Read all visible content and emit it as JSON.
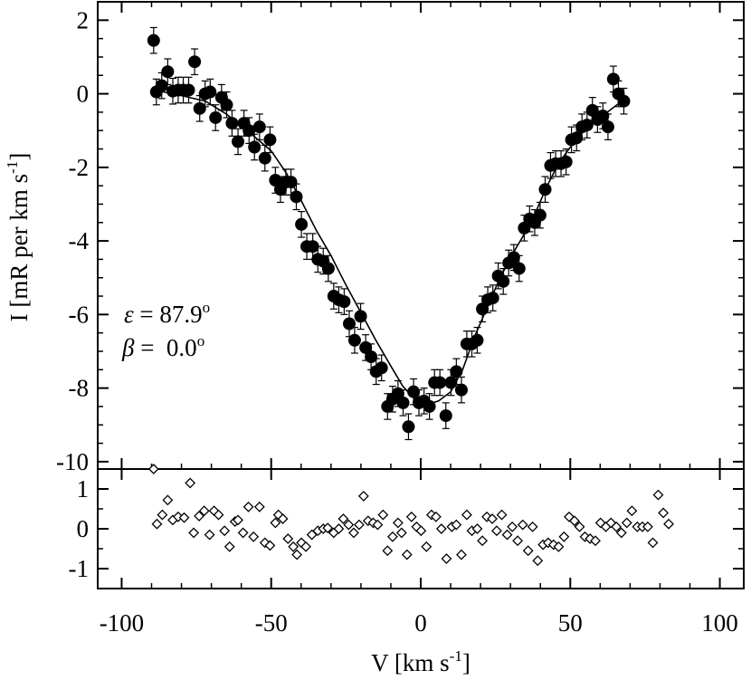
{
  "chart_data": [
    {
      "panel": "main",
      "type": "scatter",
      "ylabel": "I [mR per km s",
      "ylabel_sup": "-1",
      "ylabel_close": "]",
      "ylim": [
        -10.2,
        2.5
      ],
      "xlim": [
        -108,
        108
      ],
      "yticks": [
        2,
        0,
        -2,
        -4,
        -6,
        -8,
        -10
      ],
      "ytick_labels": [
        "2",
        "0",
        "-2",
        "-4",
        "-6",
        "-8",
        "-10"
      ],
      "annotations": [
        {
          "symbol": "ε",
          "text": " = 87.9",
          "sup": "o"
        },
        {
          "symbol": "β",
          "text": " =  0.0",
          "sup": "o"
        }
      ],
      "series": [
        {
          "name": "data",
          "style": "filled-circle-errorbar",
          "points": [
            [
              -89.3,
              1.45,
              0.35
            ],
            [
              -88.4,
              0.05,
              0.35
            ],
            [
              -86.6,
              0.22,
              0.35
            ],
            [
              -84.6,
              0.6,
              0.35
            ],
            [
              -82.9,
              0.07,
              0.35
            ],
            [
              -81.1,
              0.1,
              0.35
            ],
            [
              -79.4,
              0.1,
              0.35
            ],
            [
              -77.6,
              0.1,
              0.35
            ],
            [
              -75.6,
              0.87,
              0.35
            ],
            [
              -73.9,
              -0.4,
              0.35
            ],
            [
              -72.1,
              0.0,
              0.35
            ],
            [
              -70.4,
              0.05,
              0.35
            ],
            [
              -68.6,
              -0.65,
              0.35
            ],
            [
              -66.6,
              -0.1,
              0.35
            ],
            [
              -64.9,
              -0.3,
              0.35
            ],
            [
              -63.1,
              -0.8,
              0.35
            ],
            [
              -61.1,
              -1.3,
              0.35
            ],
            [
              -59.1,
              -0.8,
              0.35
            ],
            [
              -57.4,
              -1.0,
              0.35
            ],
            [
              -55.6,
              -1.45,
              0.35
            ],
            [
              -53.9,
              -0.9,
              0.35
            ],
            [
              -52.1,
              -1.75,
              0.35
            ],
            [
              -50.4,
              -1.25,
              0.35
            ],
            [
              -48.6,
              -2.35,
              0.35
            ],
            [
              -46.9,
              -2.6,
              0.35
            ],
            [
              -45.1,
              -2.4,
              0.35
            ],
            [
              -43.4,
              -2.4,
              0.35
            ],
            [
              -41.6,
              -2.8,
              0.35
            ],
            [
              -39.9,
              -3.55,
              0.35
            ],
            [
              -38.1,
              -4.15,
              0.35
            ],
            [
              -36.1,
              -4.15,
              0.35
            ],
            [
              -34.4,
              -4.5,
              0.35
            ],
            [
              -32.6,
              -4.55,
              0.35
            ],
            [
              -30.9,
              -4.75,
              0.35
            ],
            [
              -29.1,
              -5.5,
              0.35
            ],
            [
              -27.4,
              -5.6,
              0.35
            ],
            [
              -25.6,
              -5.65,
              0.35
            ],
            [
              -23.9,
              -6.25,
              0.35
            ],
            [
              -22.1,
              -6.7,
              0.35
            ],
            [
              -20.1,
              -6.05,
              0.35
            ],
            [
              -18.4,
              -6.9,
              0.35
            ],
            [
              -16.6,
              -7.15,
              0.35
            ],
            [
              -14.9,
              -7.55,
              0.35
            ],
            [
              -13.1,
              -7.45,
              0.35
            ],
            [
              -11.1,
              -8.5,
              0.35
            ],
            [
              -9.4,
              -8.3,
              0.35
            ],
            [
              -7.6,
              -8.15,
              0.35
            ],
            [
              -5.9,
              -8.4,
              0.35
            ],
            [
              -4.1,
              -9.05,
              0.35
            ],
            [
              -2.4,
              -8.1,
              0.35
            ],
            [
              -0.6,
              -8.4,
              0.35
            ],
            [
              1.1,
              -8.35,
              0.35
            ],
            [
              2.9,
              -8.5,
              0.35
            ],
            [
              4.6,
              -7.85,
              0.35
            ],
            [
              6.4,
              -7.85,
              0.35
            ],
            [
              8.4,
              -8.75,
              0.35
            ],
            [
              10.1,
              -7.85,
              0.35
            ],
            [
              11.9,
              -7.55,
              0.35
            ],
            [
              13.6,
              -8.05,
              0.35
            ],
            [
              15.4,
              -6.8,
              0.35
            ],
            [
              17.1,
              -6.8,
              0.35
            ],
            [
              18.9,
              -6.7,
              0.35
            ],
            [
              20.6,
              -5.85,
              0.35
            ],
            [
              22.4,
              -5.6,
              0.35
            ],
            [
              24.1,
              -5.55,
              0.35
            ],
            [
              25.9,
              -4.95,
              0.35
            ],
            [
              27.6,
              -5.1,
              0.35
            ],
            [
              29.4,
              -4.6,
              0.35
            ],
            [
              31.1,
              -4.45,
              0.35
            ],
            [
              32.9,
              -4.75,
              0.35
            ],
            [
              34.6,
              -3.65,
              0.35
            ],
            [
              36.4,
              -3.4,
              0.35
            ],
            [
              38.1,
              -3.5,
              0.35
            ],
            [
              39.9,
              -3.3,
              0.35
            ],
            [
              41.6,
              -2.6,
              0.35
            ],
            [
              43.4,
              -1.95,
              0.35
            ],
            [
              45.1,
              -1.9,
              0.35
            ],
            [
              46.9,
              -1.9,
              0.35
            ],
            [
              48.6,
              -1.85,
              0.35
            ],
            [
              50.4,
              -1.25,
              0.35
            ],
            [
              52.1,
              -1.2,
              0.35
            ],
            [
              53.9,
              -0.9,
              0.35
            ],
            [
              55.6,
              -0.85,
              0.35
            ],
            [
              57.4,
              -0.45,
              0.35
            ],
            [
              59.1,
              -0.7,
              0.35
            ],
            [
              60.9,
              -0.6,
              0.35
            ],
            [
              62.6,
              -0.9,
              0.35
            ],
            [
              64.4,
              0.4,
              0.35
            ],
            [
              66.1,
              0.0,
              0.35
            ],
            [
              67.9,
              -0.2,
              0.35
            ]
          ]
        },
        {
          "name": "model fit",
          "style": "solid-line",
          "points": [
            [
              -89,
              0.1
            ],
            [
              -80,
              -0.05
            ],
            [
              -72,
              -0.2
            ],
            [
              -65,
              -0.55
            ],
            [
              -58,
              -1.0
            ],
            [
              -50,
              -1.55
            ],
            [
              -45,
              -2.15
            ],
            [
              -40,
              -2.9
            ],
            [
              -35,
              -3.7
            ],
            [
              -30,
              -4.4
            ],
            [
              -25,
              -5.2
            ],
            [
              -20,
              -5.95
            ],
            [
              -15,
              -6.7
            ],
            [
              -10,
              -7.4
            ],
            [
              -6,
              -7.95
            ],
            [
              -2,
              -8.3
            ],
            [
              2,
              -8.45
            ],
            [
              6,
              -8.35
            ],
            [
              10,
              -8.1
            ],
            [
              14,
              -7.5
            ],
            [
              18,
              -6.6
            ],
            [
              22,
              -5.85
            ],
            [
              26,
              -5.1
            ],
            [
              30,
              -4.45
            ],
            [
              34,
              -3.9
            ],
            [
              38,
              -3.3
            ],
            [
              42,
              -2.55
            ],
            [
              46,
              -1.9
            ],
            [
              50,
              -1.45
            ],
            [
              55,
              -0.95
            ],
            [
              60,
              -0.65
            ],
            [
              64,
              -0.4
            ],
            [
              68,
              -0.15
            ]
          ]
        }
      ]
    },
    {
      "panel": "residuals",
      "type": "scatter",
      "ylim": [
        -1.5,
        1.5
      ],
      "yticks": [
        1,
        0,
        -1
      ],
      "ytick_labels": [
        "1",
        "0",
        "-1"
      ],
      "xlabel": "V [km s",
      "xlabel_sup": "-1",
      "xlabel_close": "]",
      "xlim": [
        -108,
        108
      ],
      "xticks": [
        -100,
        -50,
        0,
        50,
        100
      ],
      "xtick_labels": [
        "-100",
        "-50",
        "0",
        "50",
        "100"
      ],
      "series": [
        {
          "name": "residuals",
          "style": "open-diamond",
          "values": [
            [
              -89.3,
              1.5
            ],
            [
              -88.2,
              0.12
            ],
            [
              -86.4,
              0.35
            ],
            [
              -84.6,
              0.72
            ],
            [
              -82.9,
              0.22
            ],
            [
              -81.1,
              0.3
            ],
            [
              -79.1,
              0.28
            ],
            [
              -77.1,
              1.15
            ],
            [
              -75.9,
              -0.1
            ],
            [
              -74.1,
              0.32
            ],
            [
              -72.4,
              0.45
            ],
            [
              -70.6,
              -0.15
            ],
            [
              -69.1,
              0.45
            ],
            [
              -67.6,
              0.35
            ],
            [
              -65.6,
              -0.05
            ],
            [
              -63.9,
              -0.45
            ],
            [
              -62.1,
              0.18
            ],
            [
              -61.1,
              0.22
            ],
            [
              -59.4,
              -0.1
            ],
            [
              -57.6,
              0.55
            ],
            [
              -55.9,
              -0.2
            ],
            [
              -53.9,
              0.55
            ],
            [
              -52.1,
              -0.35
            ],
            [
              -50.4,
              -0.42
            ],
            [
              -48.6,
              0.15
            ],
            [
              -47.6,
              0.35
            ],
            [
              -46.1,
              0.25
            ],
            [
              -44.4,
              -0.25
            ],
            [
              -42.6,
              -0.45
            ],
            [
              -41.4,
              -0.65
            ],
            [
              -39.9,
              -0.35
            ],
            [
              -38.4,
              -0.45
            ],
            [
              -36.4,
              -0.15
            ],
            [
              -34.4,
              -0.05
            ],
            [
              -32.6,
              0.0
            ],
            [
              -31.1,
              0.02
            ],
            [
              -29.1,
              -0.1
            ],
            [
              -27.4,
              0.0
            ],
            [
              -25.9,
              0.25
            ],
            [
              -24.1,
              0.1
            ],
            [
              -22.4,
              -0.1
            ],
            [
              -20.6,
              0.1
            ],
            [
              -19.1,
              0.82
            ],
            [
              -17.6,
              0.2
            ],
            [
              -15.9,
              0.15
            ],
            [
              -14.4,
              0.1
            ],
            [
              -12.6,
              0.35
            ],
            [
              -11.1,
              -0.55
            ],
            [
              -9.4,
              -0.2
            ],
            [
              -7.6,
              0.15
            ],
            [
              -6.4,
              -0.1
            ],
            [
              -4.6,
              -0.65
            ],
            [
              -3.1,
              0.3
            ],
            [
              -1.4,
              0.05
            ],
            [
              0.1,
              -0.05
            ],
            [
              1.9,
              -0.45
            ],
            [
              3.6,
              0.35
            ],
            [
              5.1,
              0.3
            ],
            [
              6.9,
              0.0
            ],
            [
              8.6,
              -0.75
            ],
            [
              10.4,
              0.05
            ],
            [
              11.9,
              0.1
            ],
            [
              13.6,
              -0.65
            ],
            [
              15.4,
              0.35
            ],
            [
              17.1,
              -0.05
            ],
            [
              18.9,
              0.0
            ],
            [
              20.6,
              -0.3
            ],
            [
              22.1,
              0.3
            ],
            [
              23.9,
              0.25
            ],
            [
              25.4,
              -0.05
            ],
            [
              27.1,
              0.35
            ],
            [
              28.9,
              -0.15
            ],
            [
              30.6,
              0.05
            ],
            [
              32.4,
              -0.3
            ],
            [
              34.1,
              0.1
            ],
            [
              35.9,
              -0.55
            ],
            [
              37.4,
              0.05
            ],
            [
              39.1,
              -0.8
            ],
            [
              40.9,
              -0.4
            ],
            [
              42.6,
              -0.35
            ],
            [
              44.4,
              -0.4
            ],
            [
              46.1,
              -0.45
            ],
            [
              47.9,
              -0.2
            ],
            [
              49.6,
              0.3
            ],
            [
              51.4,
              0.2
            ],
            [
              53.1,
              0.05
            ],
            [
              54.9,
              -0.2
            ],
            [
              56.6,
              -0.25
            ],
            [
              58.4,
              -0.3
            ],
            [
              60.1,
              0.15
            ],
            [
              61.9,
              0.05
            ],
            [
              63.6,
              0.15
            ],
            [
              65.4,
              0.05
            ],
            [
              67.1,
              -0.1
            ],
            [
              68.9,
              0.15
            ],
            [
              70.6,
              0.45
            ],
            [
              72.4,
              0.05
            ],
            [
              74.1,
              0.05
            ],
            [
              75.9,
              0.05
            ],
            [
              77.6,
              -0.35
            ],
            [
              79.4,
              0.85
            ],
            [
              81.1,
              0.4
            ],
            [
              82.9,
              0.12
            ]
          ]
        }
      ]
    }
  ]
}
